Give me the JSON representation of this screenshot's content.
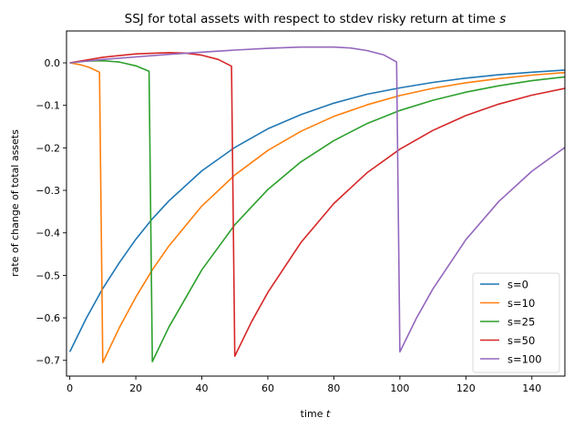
{
  "chart_data": {
    "type": "line",
    "title": "SSJ for total assets with respect to stdev risky return at time s",
    "title_plain": "SSJ for total assets with respect to stdev risky return at time ",
    "title_italic": "s",
    "xlabel_plain": "time ",
    "xlabel_italic": "t",
    "xlabel": "time t",
    "ylabel": "rate of change of total assets",
    "xlim": [
      -1,
      150
    ],
    "ylim": [
      -0.737,
      0.075
    ],
    "xticks": [
      0,
      20,
      40,
      60,
      80,
      100,
      120,
      140
    ],
    "yticks": [
      0.0,
      -0.1,
      -0.2,
      -0.3,
      -0.4,
      -0.5,
      -0.6,
      -0.7
    ],
    "ytick_labels": [
      "0.0",
      "−0.1",
      "−0.2",
      "−0.3",
      "−0.4",
      "−0.5",
      "−0.6",
      "−0.7"
    ],
    "grid": false,
    "legend_position": "lower right",
    "series": [
      {
        "name": "s=0",
        "color": "#1f77b4",
        "x": [
          0,
          5,
          10,
          15,
          20,
          25,
          30,
          40,
          50,
          60,
          70,
          80,
          90,
          100,
          110,
          120,
          130,
          140,
          150
        ],
        "values": [
          -0.68,
          -0.601,
          -0.531,
          -0.47,
          -0.415,
          -0.367,
          -0.325,
          -0.254,
          -0.199,
          -0.155,
          -0.122,
          -0.095,
          -0.074,
          -0.059,
          -0.046,
          -0.036,
          -0.028,
          -0.022,
          -0.017
        ]
      },
      {
        "name": "s=10",
        "color": "#ff7f0e",
        "x": [
          0,
          3,
          6,
          9,
          10,
          15,
          20,
          25,
          30,
          40,
          50,
          60,
          70,
          80,
          90,
          100,
          110,
          120,
          130,
          140,
          150
        ],
        "values": [
          0.0,
          -0.004,
          -0.011,
          -0.022,
          -0.705,
          -0.623,
          -0.551,
          -0.487,
          -0.431,
          -0.337,
          -0.264,
          -0.206,
          -0.161,
          -0.126,
          -0.099,
          -0.077,
          -0.06,
          -0.047,
          -0.037,
          -0.029,
          -0.023
        ]
      },
      {
        "name": "s=25",
        "color": "#2ca02c",
        "x": [
          0,
          5,
          10,
          15,
          20,
          24,
          25,
          30,
          40,
          50,
          60,
          70,
          80,
          90,
          100,
          110,
          120,
          130,
          140,
          150
        ],
        "values": [
          0.0,
          0.004,
          0.005,
          0.002,
          -0.007,
          -0.02,
          -0.703,
          -0.622,
          -0.487,
          -0.381,
          -0.298,
          -0.233,
          -0.183,
          -0.143,
          -0.112,
          -0.088,
          -0.069,
          -0.054,
          -0.042,
          -0.033
        ]
      },
      {
        "name": "s=50",
        "color": "#d62728",
        "x": [
          0,
          10,
          20,
          30,
          35,
          40,
          45,
          49,
          50,
          55,
          60,
          70,
          80,
          90,
          100,
          110,
          120,
          130,
          140,
          150
        ],
        "values": [
          0.0,
          0.013,
          0.021,
          0.024,
          0.023,
          0.018,
          0.008,
          -0.008,
          -0.69,
          -0.61,
          -0.54,
          -0.423,
          -0.331,
          -0.259,
          -0.203,
          -0.159,
          -0.124,
          -0.097,
          -0.076,
          -0.06
        ]
      },
      {
        "name": "s=100",
        "color": "#9467bd",
        "x": [
          0,
          10,
          20,
          30,
          40,
          50,
          60,
          70,
          80,
          85,
          90,
          95,
          99,
          100,
          105,
          110,
          120,
          130,
          140,
          150
        ],
        "values": [
          0.0,
          0.008,
          0.014,
          0.02,
          0.025,
          0.03,
          0.034,
          0.037,
          0.037,
          0.035,
          0.029,
          0.019,
          0.002,
          -0.68,
          -0.601,
          -0.532,
          -0.416,
          -0.326,
          -0.255,
          -0.199
        ]
      }
    ]
  }
}
